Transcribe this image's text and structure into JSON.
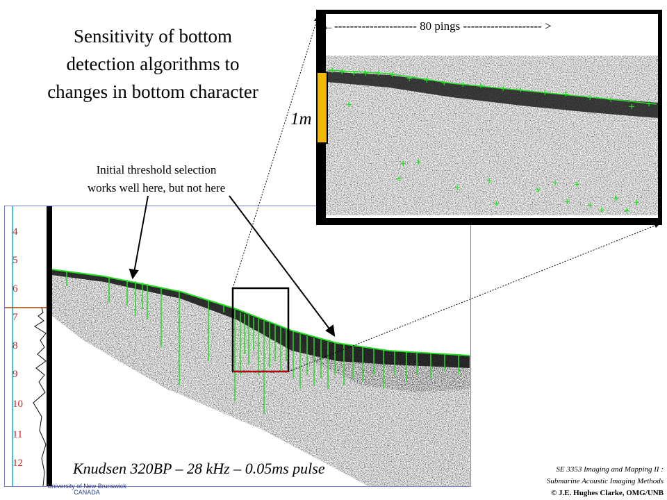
{
  "title": [
    "Sensitivity of bottom",
    "detection algorithms to",
    "changes in bottom character"
  ],
  "annotation": [
    "Initial threshold selection",
    "works well here, but not here"
  ],
  "inset": {
    "pings_label": "←--------------------- 80 pings -------------------- >",
    "scale_label": "1m"
  },
  "depth_axis": {
    "labels": [
      "4",
      "5",
      "6",
      "7",
      "8",
      "9",
      "10",
      "11",
      "12"
    ]
  },
  "caption": "Knudsen 320BP – 28 kHz – 0.05ms pulse",
  "credits": [
    "SE 3353 Imaging and Mapping II :",
    "Submarine Acoustic Imaging Methods",
    "© J.E. Hughes Clarke, OMG/UNB"
  ],
  "university": [
    "University of New Brunswick",
    "CANADA"
  ],
  "colors": {
    "detection": "#22dd22",
    "depth_labels": "#d02020",
    "scale_bar": "#f0b800",
    "border_blue": "#7a7ad0"
  }
}
